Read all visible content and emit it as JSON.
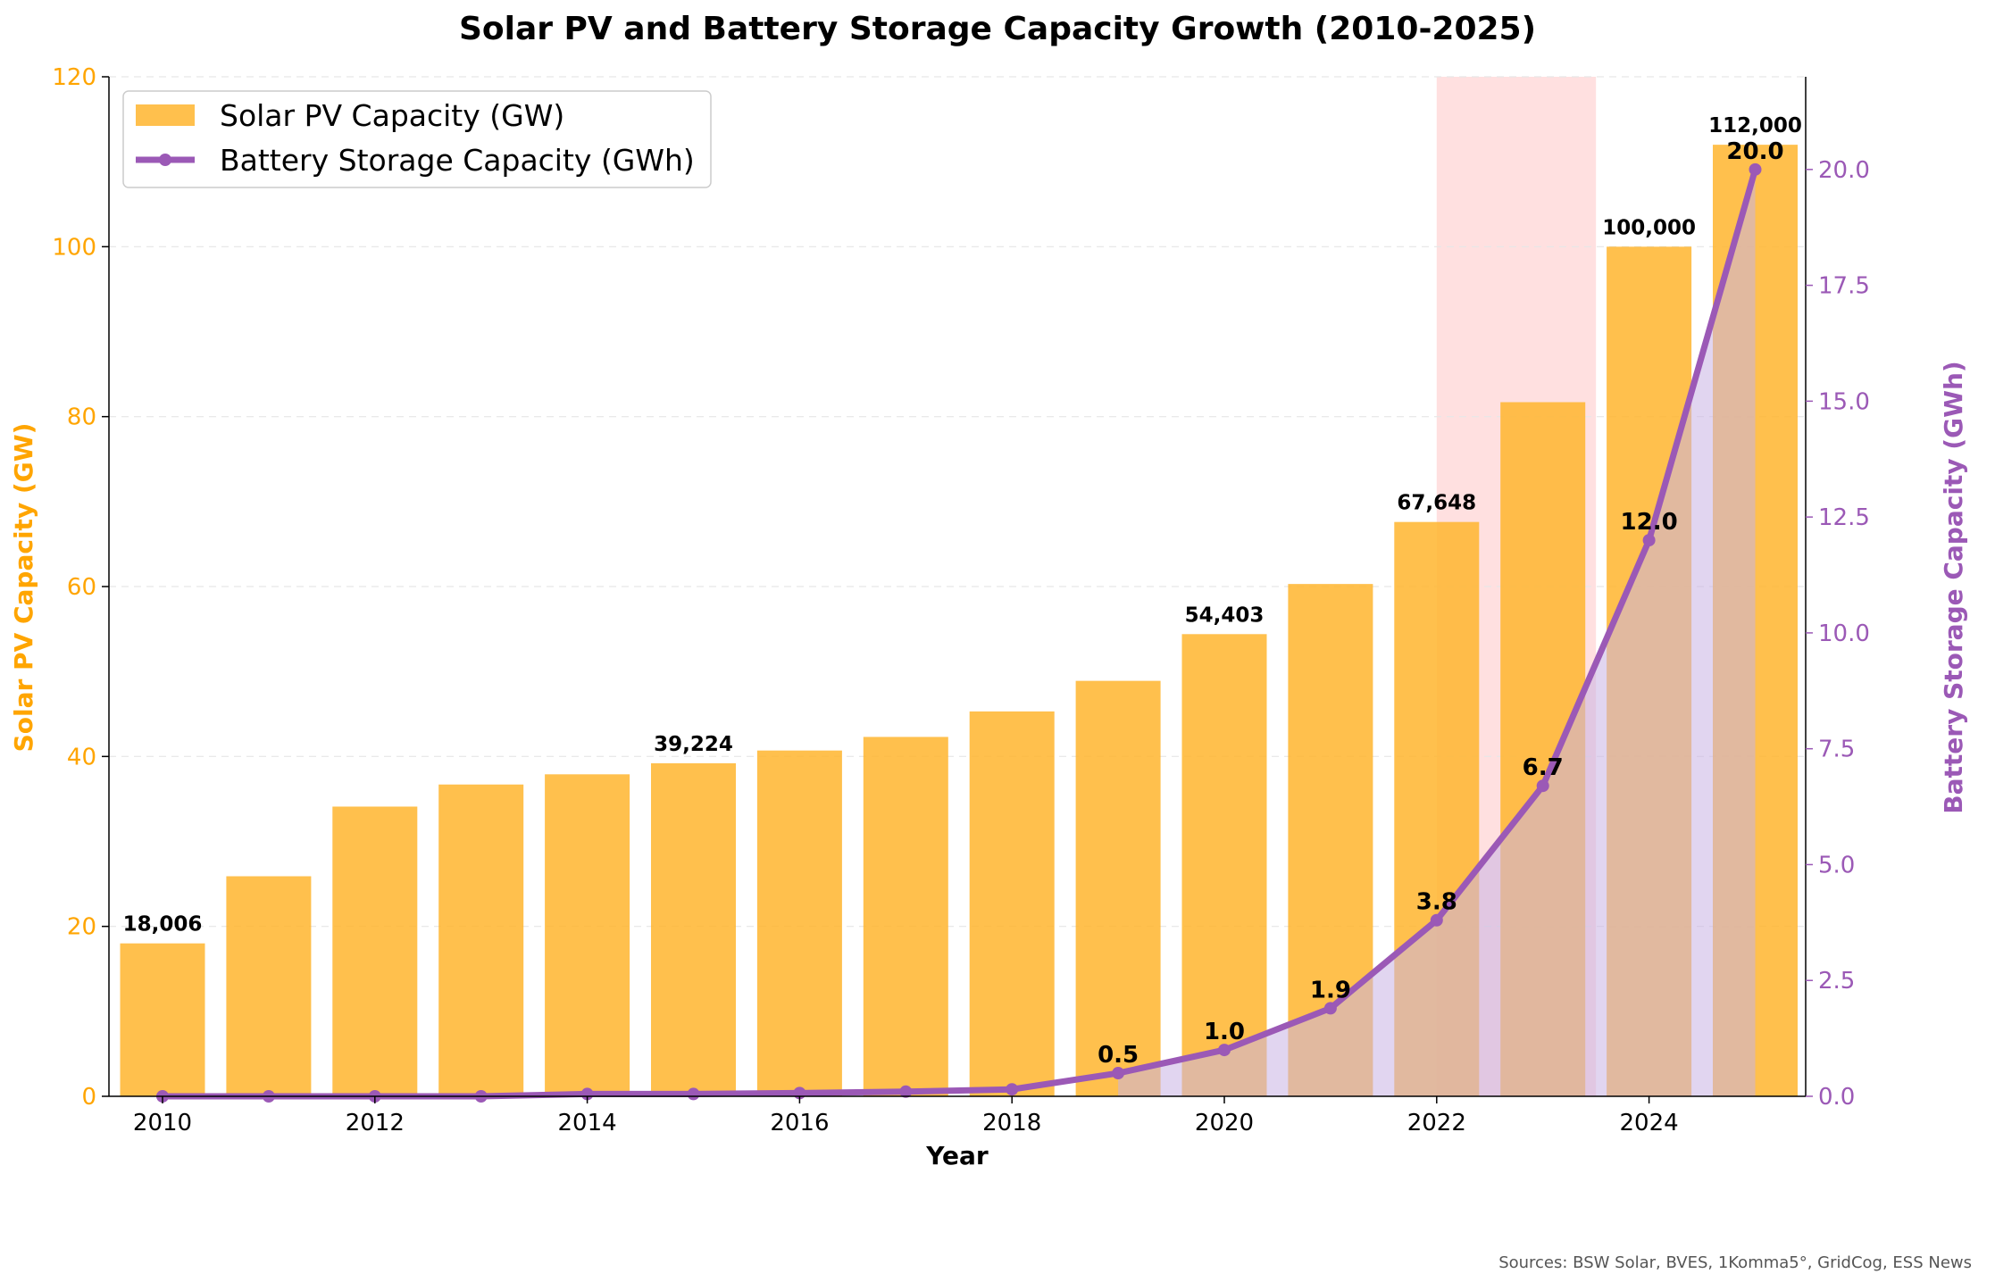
{
  "chart_data": {
    "type": "bar+line",
    "title": "Solar PV and Battery Storage Capacity Growth (2010-2025)",
    "xlabel": "Year",
    "ylabel_left": "Solar PV Capacity (GW)",
    "ylabel_right": "Battery Storage Capacity (GWh)",
    "categories": [
      2010,
      2011,
      2012,
      2013,
      2014,
      2015,
      2016,
      2017,
      2018,
      2019,
      2020,
      2021,
      2022,
      2023,
      2024,
      2025
    ],
    "x_ticks": [
      "2010",
      "2012",
      "2014",
      "2016",
      "2018",
      "2020",
      "2022",
      "2024"
    ],
    "ylim_left": [
      0,
      120
    ],
    "yticks_left": [
      "0",
      "20",
      "40",
      "60",
      "80",
      "100",
      "120"
    ],
    "ylim_right": [
      0,
      22
    ],
    "yticks_right": [
      "0.0",
      "2.5",
      "5.0",
      "7.5",
      "10.0",
      "12.5",
      "15.0",
      "17.5",
      "20.0"
    ],
    "series": [
      {
        "name": "Solar PV Capacity (GW)",
        "type": "bar",
        "color": "#FFB52E",
        "values": [
          18.0,
          25.9,
          34.1,
          36.7,
          37.9,
          39.2,
          40.7,
          42.3,
          45.3,
          48.9,
          54.4,
          60.3,
          67.6,
          81.7,
          100.0,
          112.0
        ]
      },
      {
        "name": "Battery Storage Capacity (GWh)",
        "type": "line",
        "color": "#9B59B6",
        "values": [
          0.0,
          0.0,
          0.0,
          0.0,
          0.05,
          0.05,
          0.07,
          0.1,
          0.15,
          0.5,
          1.0,
          1.9,
          3.8,
          6.7,
          12.0,
          20.0
        ]
      }
    ],
    "bar_labels": [
      {
        "index": 0,
        "text": "18,006"
      },
      {
        "index": 5,
        "text": "39,224"
      },
      {
        "index": 10,
        "text": "54,403"
      },
      {
        "index": 12,
        "text": "67,648"
      },
      {
        "index": 14,
        "text": "100,000"
      },
      {
        "index": 15,
        "text": "112,000"
      }
    ],
    "point_labels": [
      {
        "index": 9,
        "text": "0.5"
      },
      {
        "index": 10,
        "text": "1.0"
      },
      {
        "index": 11,
        "text": "1.9"
      },
      {
        "index": 12,
        "text": "3.8"
      },
      {
        "index": 13,
        "text": "6.7"
      },
      {
        "index": 14,
        "text": "12.0"
      },
      {
        "index": 15,
        "text": "20.0"
      }
    ],
    "battery_shading": {
      "from_index": 9,
      "to_index": 15,
      "color": "#C9B2E3"
    },
    "highlight_span": {
      "from_year": 2022,
      "to_year": 2023.5,
      "color": "#FFCCCC"
    },
    "legend": {
      "position": "top-left"
    },
    "grid": "horizontal dashed",
    "source_note": "Sources: BSW Solar, BVES, 1Komma5°, GridCog, ESS News"
  }
}
